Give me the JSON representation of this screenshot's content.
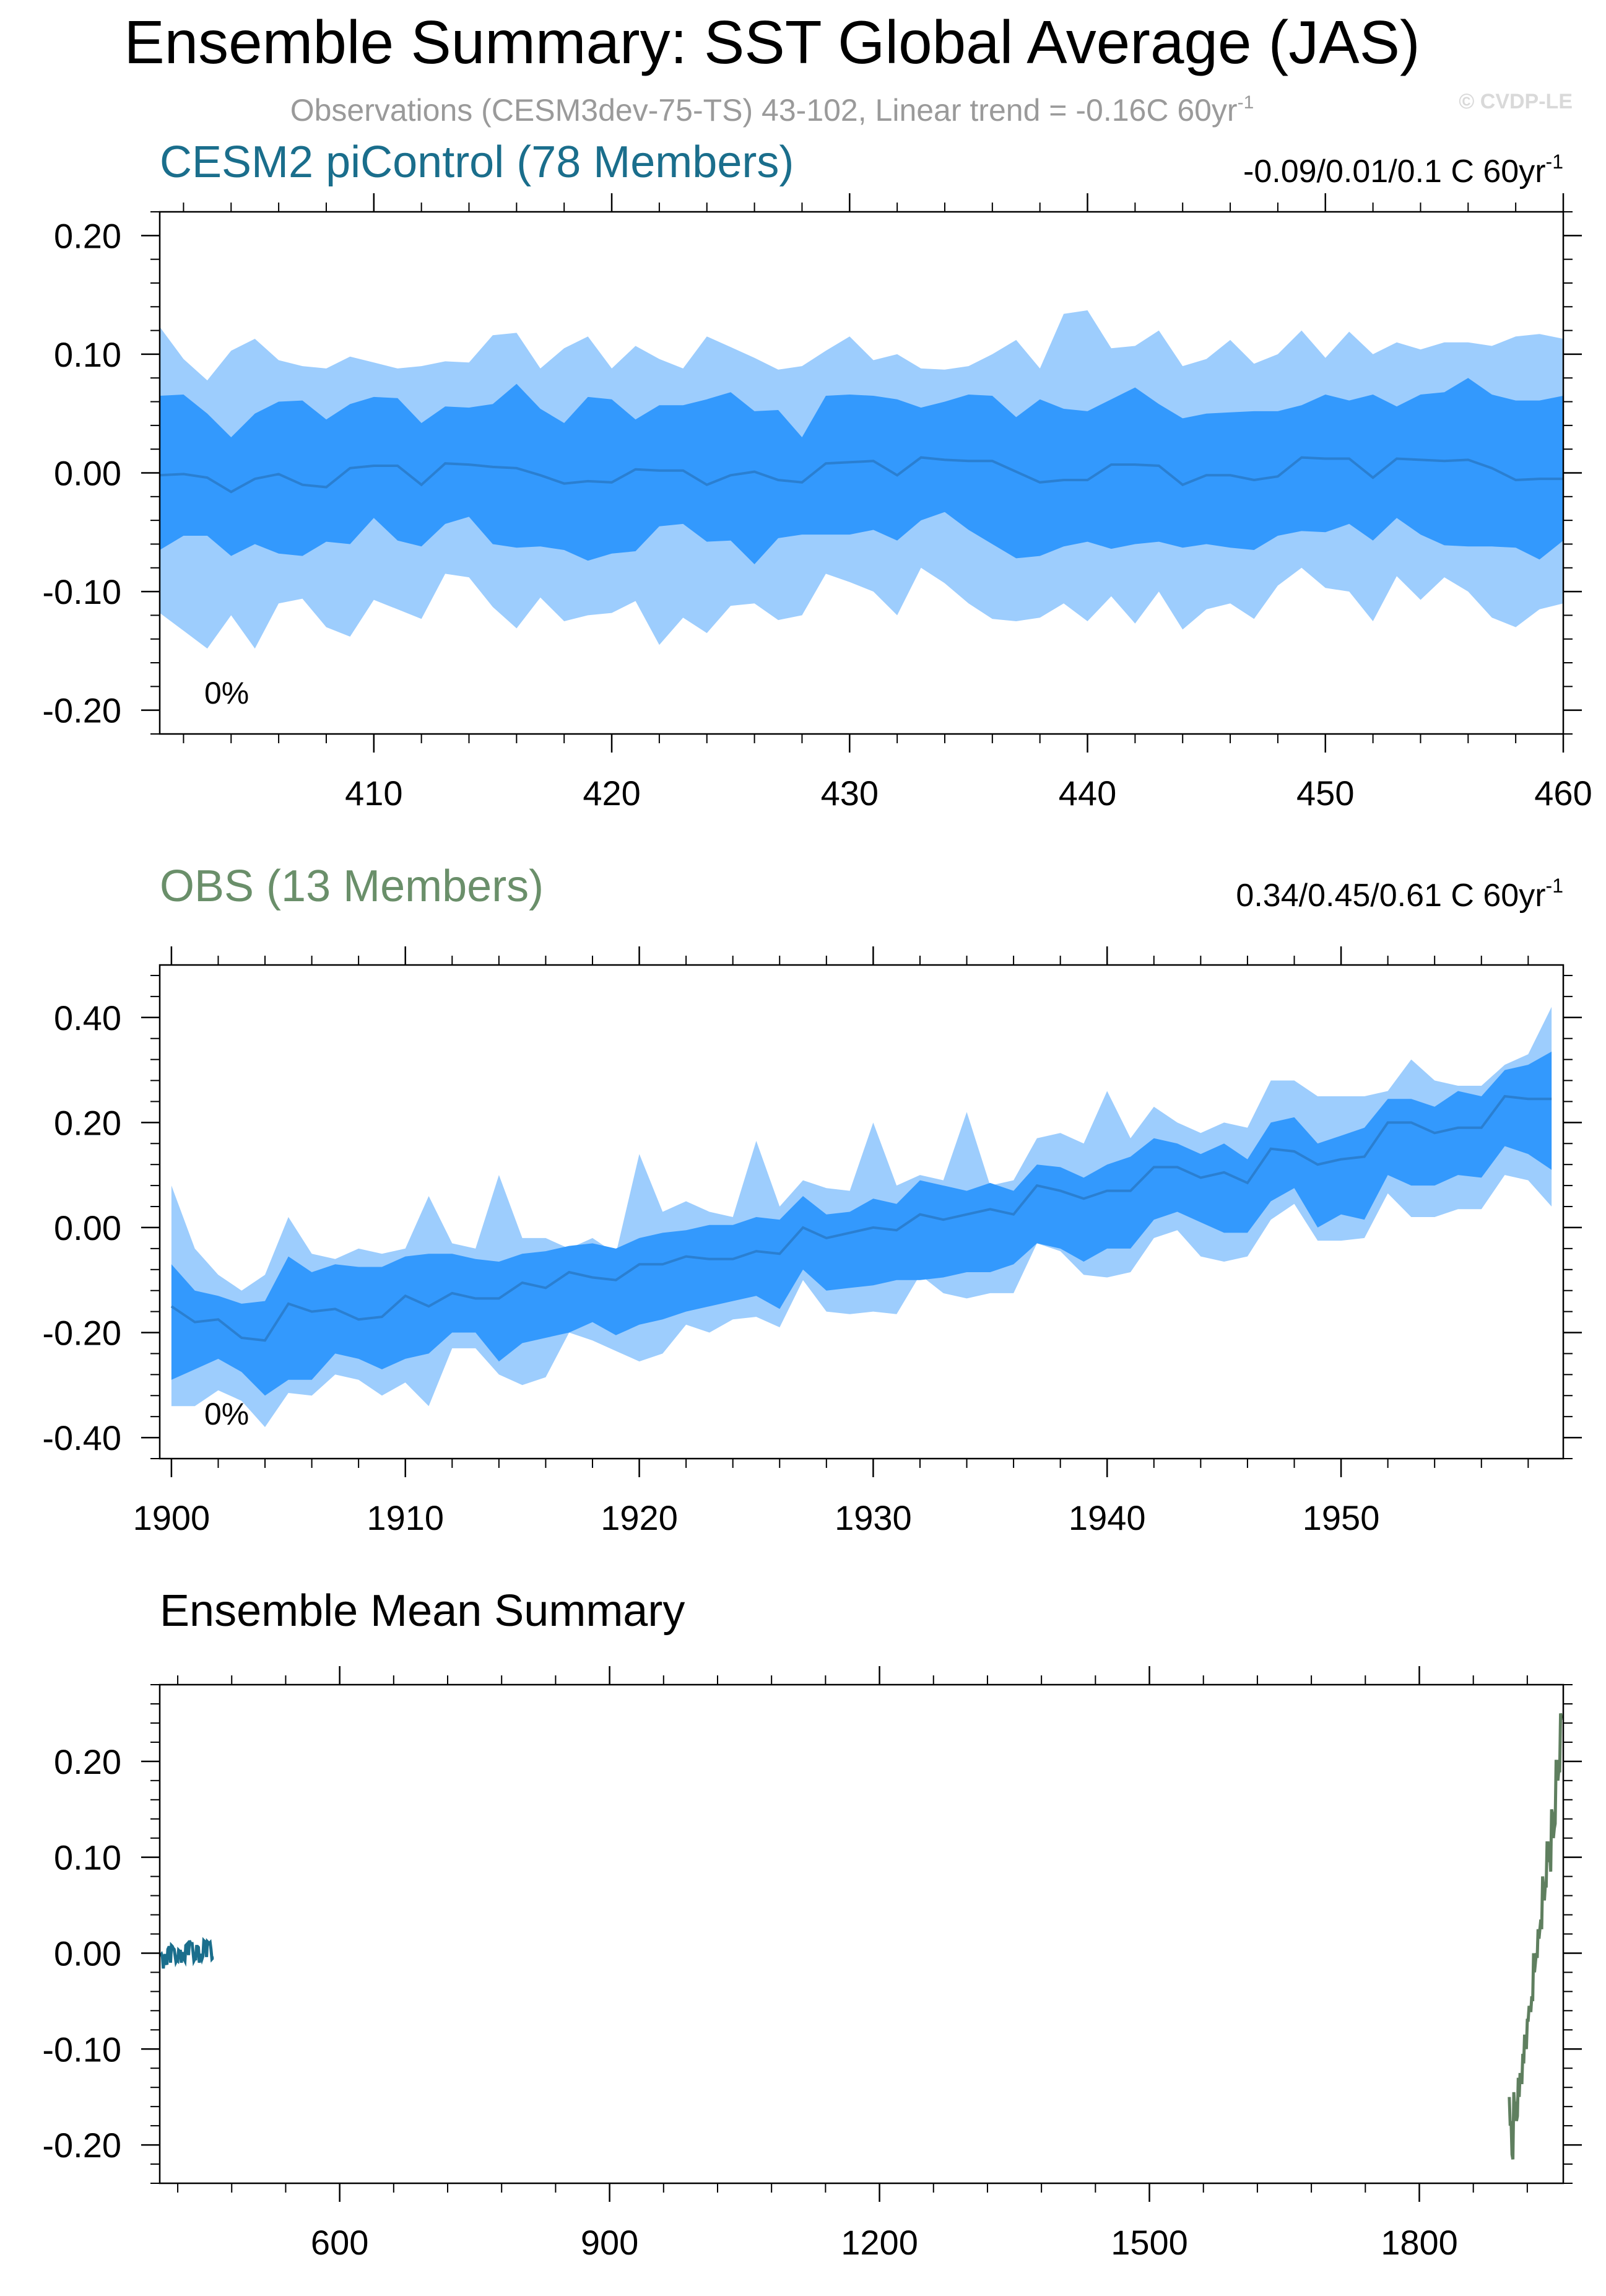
{
  "title": "Ensemble Summary: SST Global Average (JAS)",
  "subtitle": "Observations (CESM3dev-75-TS) 43-102, Linear trend = -0.16C 60yr",
  "subtitle_sup": "-1",
  "watermark": "© CVDP-LE",
  "colors": {
    "outer_band": "#9dcdfd",
    "inner_band": "#3399fd",
    "mean_line": "#2a7fd1",
    "cesm_label": "#1a6e8c",
    "obs_label": "#6a8f6a",
    "cesm_line": "#1a6e8c",
    "obs_line": "#5f7f5f",
    "axis": "#000000",
    "muted_text": "#9a9a9a"
  },
  "chart_data": [
    {
      "type": "area",
      "label": "CESM2 piControl (78 Members)",
      "trend_text": "-0.09/0.01/0.1 C 60yr",
      "trend_sup": "-1",
      "percent_label": "0%",
      "xlim": [
        401,
        460
      ],
      "ylim": [
        -0.22,
        0.22
      ],
      "xticks": [
        410,
        420,
        430,
        440,
        450,
        460
      ],
      "xtick_labels": [
        "410",
        "420",
        "430",
        "440",
        "450",
        "460"
      ],
      "yticks": [
        -0.2,
        -0.1,
        0.0,
        0.1,
        0.2
      ],
      "ytick_labels": [
        "-0.20",
        "-0.10",
        "0.00",
        "0.10",
        "0.20"
      ],
      "x_start": 401,
      "mean": [
        -0.002,
        -0.001,
        -0.004,
        -0.016,
        -0.005,
        -0.001,
        -0.01,
        -0.012,
        0.004,
        0.006,
        0.006,
        -0.01,
        0.008,
        0.007,
        0.005,
        0.004,
        -0.002,
        -0.009,
        -0.007,
        -0.008,
        0.003,
        0.002,
        0.002,
        -0.01,
        -0.002,
        0.001,
        -0.006,
        -0.008,
        0.008,
        0.009,
        0.01,
        -0.002,
        0.013,
        0.011,
        0.01,
        0.01,
        0.001,
        -0.008,
        -0.006,
        -0.006,
        0.007,
        0.007,
        0.006,
        -0.01,
        -0.002,
        -0.002,
        -0.006,
        -0.003,
        0.013,
        0.012,
        0.012,
        -0.004,
        0.012,
        0.011,
        0.01,
        0.011,
        0.004,
        -0.006,
        -0.005,
        -0.005
      ],
      "inner_low": [
        -0.065,
        -0.053,
        -0.053,
        -0.07,
        -0.06,
        -0.068,
        -0.07,
        -0.058,
        -0.06,
        -0.038,
        -0.057,
        -0.062,
        -0.043,
        -0.037,
        -0.06,
        -0.063,
        -0.062,
        -0.065,
        -0.074,
        -0.068,
        -0.066,
        -0.045,
        -0.043,
        -0.058,
        -0.057,
        -0.077,
        -0.055,
        -0.052,
        -0.052,
        -0.052,
        -0.048,
        -0.057,
        -0.04,
        -0.033,
        -0.048,
        -0.06,
        -0.072,
        -0.07,
        -0.062,
        -0.058,
        -0.064,
        -0.06,
        -0.058,
        -0.063,
        -0.06,
        -0.063,
        -0.065,
        -0.053,
        -0.049,
        -0.05,
        -0.043,
        -0.057,
        -0.038,
        -0.052,
        -0.061,
        -0.062,
        -0.062,
        -0.063,
        -0.073,
        -0.057
      ],
      "inner_high": [
        0.065,
        0.066,
        0.05,
        0.03,
        0.05,
        0.06,
        0.061,
        0.045,
        0.058,
        0.064,
        0.063,
        0.042,
        0.056,
        0.055,
        0.058,
        0.075,
        0.054,
        0.042,
        0.064,
        0.062,
        0.045,
        0.057,
        0.057,
        0.062,
        0.068,
        0.052,
        0.053,
        0.03,
        0.065,
        0.066,
        0.065,
        0.062,
        0.055,
        0.06,
        0.066,
        0.065,
        0.047,
        0.062,
        0.054,
        0.052,
        0.062,
        0.072,
        0.058,
        0.046,
        0.05,
        0.051,
        0.052,
        0.052,
        0.057,
        0.066,
        0.061,
        0.066,
        0.056,
        0.066,
        0.068,
        0.08,
        0.066,
        0.061,
        0.061,
        0.065
      ],
      "outer_low": [
        -0.118,
        -0.133,
        -0.148,
        -0.12,
        -0.148,
        -0.11,
        -0.106,
        -0.13,
        -0.138,
        -0.107,
        -0.115,
        -0.123,
        -0.085,
        -0.088,
        -0.113,
        -0.131,
        -0.105,
        -0.125,
        -0.12,
        -0.118,
        -0.108,
        -0.145,
        -0.122,
        -0.135,
        -0.112,
        -0.11,
        -0.124,
        -0.12,
        -0.085,
        -0.092,
        -0.1,
        -0.12,
        -0.08,
        -0.093,
        -0.11,
        -0.123,
        -0.125,
        -0.122,
        -0.11,
        -0.125,
        -0.104,
        -0.127,
        -0.1,
        -0.132,
        -0.115,
        -0.11,
        -0.123,
        -0.095,
        -0.08,
        -0.097,
        -0.1,
        -0.125,
        -0.087,
        -0.107,
        -0.088,
        -0.1,
        -0.122,
        -0.13,
        -0.115,
        -0.11
      ],
      "outer_high": [
        0.123,
        0.096,
        0.078,
        0.103,
        0.113,
        0.095,
        0.09,
        0.088,
        0.098,
        0.093,
        0.088,
        0.09,
        0.094,
        0.093,
        0.116,
        0.118,
        0.088,
        0.105,
        0.115,
        0.088,
        0.107,
        0.096,
        0.088,
        0.115,
        0.106,
        0.097,
        0.087,
        0.09,
        0.103,
        0.115,
        0.095,
        0.1,
        0.088,
        0.087,
        0.09,
        0.1,
        0.112,
        0.088,
        0.134,
        0.137,
        0.105,
        0.107,
        0.12,
        0.09,
        0.096,
        0.112,
        0.092,
        0.1,
        0.12,
        0.097,
        0.119,
        0.1,
        0.11,
        0.104,
        0.11,
        0.11,
        0.107,
        0.115,
        0.117,
        0.113
      ]
    },
    {
      "type": "area",
      "label": "OBS (13 Members)",
      "trend_text": "0.34/0.45/0.61 C 60yr",
      "trend_sup": "-1",
      "percent_label": "0%",
      "xlim": [
        1899.5,
        1959.5
      ],
      "ylim": [
        -0.44,
        0.5
      ],
      "xticks": [
        1900,
        1910,
        1920,
        1930,
        1940,
        1950
      ],
      "xtick_labels": [
        "1900",
        "1910",
        "1920",
        "1930",
        "1940",
        "1950"
      ],
      "yticks": [
        -0.4,
        -0.2,
        0.0,
        0.2,
        0.4
      ],
      "ytick_labels": [
        "-0.40",
        "-0.20",
        "0.00",
        "0.20",
        "0.40"
      ],
      "x_start": 1900,
      "mean": [
        -0.15,
        -0.18,
        -0.175,
        -0.21,
        -0.215,
        -0.145,
        -0.16,
        -0.155,
        -0.175,
        -0.17,
        -0.13,
        -0.15,
        -0.125,
        -0.135,
        -0.135,
        -0.105,
        -0.115,
        -0.085,
        -0.095,
        -0.1,
        -0.07,
        -0.07,
        -0.055,
        -0.06,
        -0.06,
        -0.045,
        -0.05,
        0.0,
        -0.02,
        -0.01,
        0.0,
        -0.005,
        0.025,
        0.015,
        0.025,
        0.035,
        0.025,
        0.08,
        0.07,
        0.055,
        0.07,
        0.07,
        0.115,
        0.115,
        0.095,
        0.105,
        0.085,
        0.15,
        0.145,
        0.12,
        0.13,
        0.135,
        0.2,
        0.2,
        0.18,
        0.19,
        0.19,
        0.25,
        0.245,
        0.245
      ],
      "inner_low": [
        -0.29,
        -0.27,
        -0.25,
        -0.275,
        -0.32,
        -0.29,
        -0.29,
        -0.24,
        -0.25,
        -0.27,
        -0.25,
        -0.24,
        -0.2,
        -0.2,
        -0.255,
        -0.22,
        -0.21,
        -0.2,
        -0.18,
        -0.205,
        -0.185,
        -0.175,
        -0.16,
        -0.15,
        -0.14,
        -0.13,
        -0.155,
        -0.08,
        -0.12,
        -0.115,
        -0.11,
        -0.1,
        -0.1,
        -0.095,
        -0.085,
        -0.085,
        -0.07,
        -0.03,
        -0.04,
        -0.065,
        -0.04,
        -0.04,
        0.015,
        0.03,
        0.01,
        -0.01,
        -0.01,
        0.05,
        0.075,
        0.0,
        0.025,
        0.015,
        0.1,
        0.08,
        0.08,
        0.1,
        0.095,
        0.155,
        0.14,
        0.11
      ],
      "inner_high": [
        -0.07,
        -0.12,
        -0.13,
        -0.145,
        -0.14,
        -0.055,
        -0.085,
        -0.07,
        -0.075,
        -0.075,
        -0.055,
        -0.05,
        -0.05,
        -0.06,
        -0.065,
        -0.05,
        -0.045,
        -0.035,
        -0.03,
        -0.04,
        -0.02,
        -0.01,
        -0.005,
        0.005,
        0.005,
        0.02,
        0.015,
        0.06,
        0.025,
        0.03,
        0.055,
        0.045,
        0.09,
        0.08,
        0.07,
        0.085,
        0.07,
        0.12,
        0.115,
        0.095,
        0.12,
        0.135,
        0.17,
        0.16,
        0.14,
        0.16,
        0.13,
        0.2,
        0.21,
        0.16,
        0.175,
        0.19,
        0.245,
        0.245,
        0.23,
        0.26,
        0.25,
        0.3,
        0.31,
        0.335
      ],
      "outer_low": [
        -0.34,
        -0.34,
        -0.31,
        -0.33,
        -0.38,
        -0.315,
        -0.32,
        -0.28,
        -0.29,
        -0.32,
        -0.295,
        -0.34,
        -0.23,
        -0.23,
        -0.28,
        -0.3,
        -0.285,
        -0.2,
        -0.215,
        -0.235,
        -0.255,
        -0.24,
        -0.185,
        -0.2,
        -0.175,
        -0.17,
        -0.19,
        -0.1,
        -0.16,
        -0.165,
        -0.16,
        -0.165,
        -0.09,
        -0.125,
        -0.135,
        -0.125,
        -0.125,
        -0.03,
        -0.045,
        -0.09,
        -0.095,
        -0.085,
        -0.02,
        -0.005,
        -0.055,
        -0.065,
        -0.055,
        0.015,
        0.045,
        -0.025,
        -0.025,
        -0.02,
        0.065,
        0.02,
        0.02,
        0.035,
        0.035,
        0.1,
        0.09,
        0.04
      ],
      "outer_high": [
        0.08,
        -0.04,
        -0.09,
        -0.12,
        -0.09,
        0.02,
        -0.05,
        -0.06,
        -0.04,
        -0.05,
        -0.04,
        0.06,
        -0.03,
        -0.04,
        0.1,
        -0.02,
        -0.02,
        -0.04,
        -0.02,
        -0.05,
        0.14,
        0.03,
        0.05,
        0.03,
        0.02,
        0.165,
        0.04,
        0.09,
        0.075,
        0.07,
        0.2,
        0.08,
        0.1,
        0.09,
        0.22,
        0.08,
        0.09,
        0.17,
        0.18,
        0.16,
        0.26,
        0.17,
        0.23,
        0.2,
        0.18,
        0.2,
        0.19,
        0.28,
        0.28,
        0.25,
        0.25,
        0.25,
        0.26,
        0.32,
        0.28,
        0.27,
        0.27,
        0.31,
        0.33,
        0.42
      ]
    },
    {
      "type": "line",
      "label": "Ensemble Mean Summary",
      "xlim": [
        400,
        1960
      ],
      "ylim": [
        -0.24,
        0.28
      ],
      "xticks": [
        600,
        900,
        1200,
        1500,
        1800
      ],
      "xtick_labels": [
        "600",
        "900",
        "1200",
        "1500",
        "1800"
      ],
      "yticks": [
        -0.2,
        -0.1,
        0.0,
        0.1,
        0.2
      ],
      "ytick_labels": [
        "-0.20",
        "-0.10",
        "0.00",
        "0.10",
        "0.20"
      ],
      "series": [
        {
          "name": "CESM2 piControl",
          "x_start": 401,
          "source": 0
        },
        {
          "name": "OBS",
          "x_start": 1900,
          "source": 1
        }
      ]
    }
  ]
}
